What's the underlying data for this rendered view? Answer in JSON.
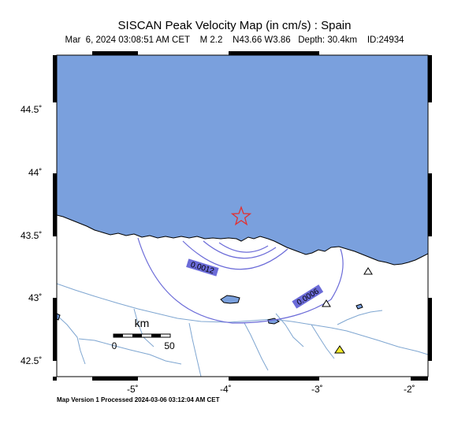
{
  "title": "SISCAN Peak Velocity Map (in cm/s) : Spain",
  "subtitle": {
    "date": "Mar  6, 2024 03:08:51 AM CET",
    "magnitude": "M 2.2",
    "location": "N43.66 W3.86",
    "depth": "Depth: 30.4km",
    "id": "ID:24934"
  },
  "axes": {
    "lat_labels": [
      "44.5˚",
      "44˚",
      "43.5˚",
      "43˚",
      "42.5˚"
    ],
    "lon_labels": [
      "-5˚",
      "-4˚",
      "-3˚",
      "-2˚"
    ]
  },
  "contours": {
    "labels": [
      "0.0012",
      "0.0006"
    ]
  },
  "scale_bar": {
    "unit": "km",
    "ticks": [
      "0",
      "50"
    ]
  },
  "footer": "Map Version 1 Processed 2024-03-06 03:12:04 AM CET",
  "colors": {
    "sea": "#7aa0dd",
    "land": "#ffffff",
    "contour": "#6b6bd8",
    "contour_label_bg": "#6b6bd8",
    "river": "#7fa6d1",
    "epicenter": "#e23030",
    "station_yellow": "#f2ea2a"
  },
  "markers": {
    "epicenter_icon": "star-icon",
    "station_icon": "triangle-icon"
  }
}
